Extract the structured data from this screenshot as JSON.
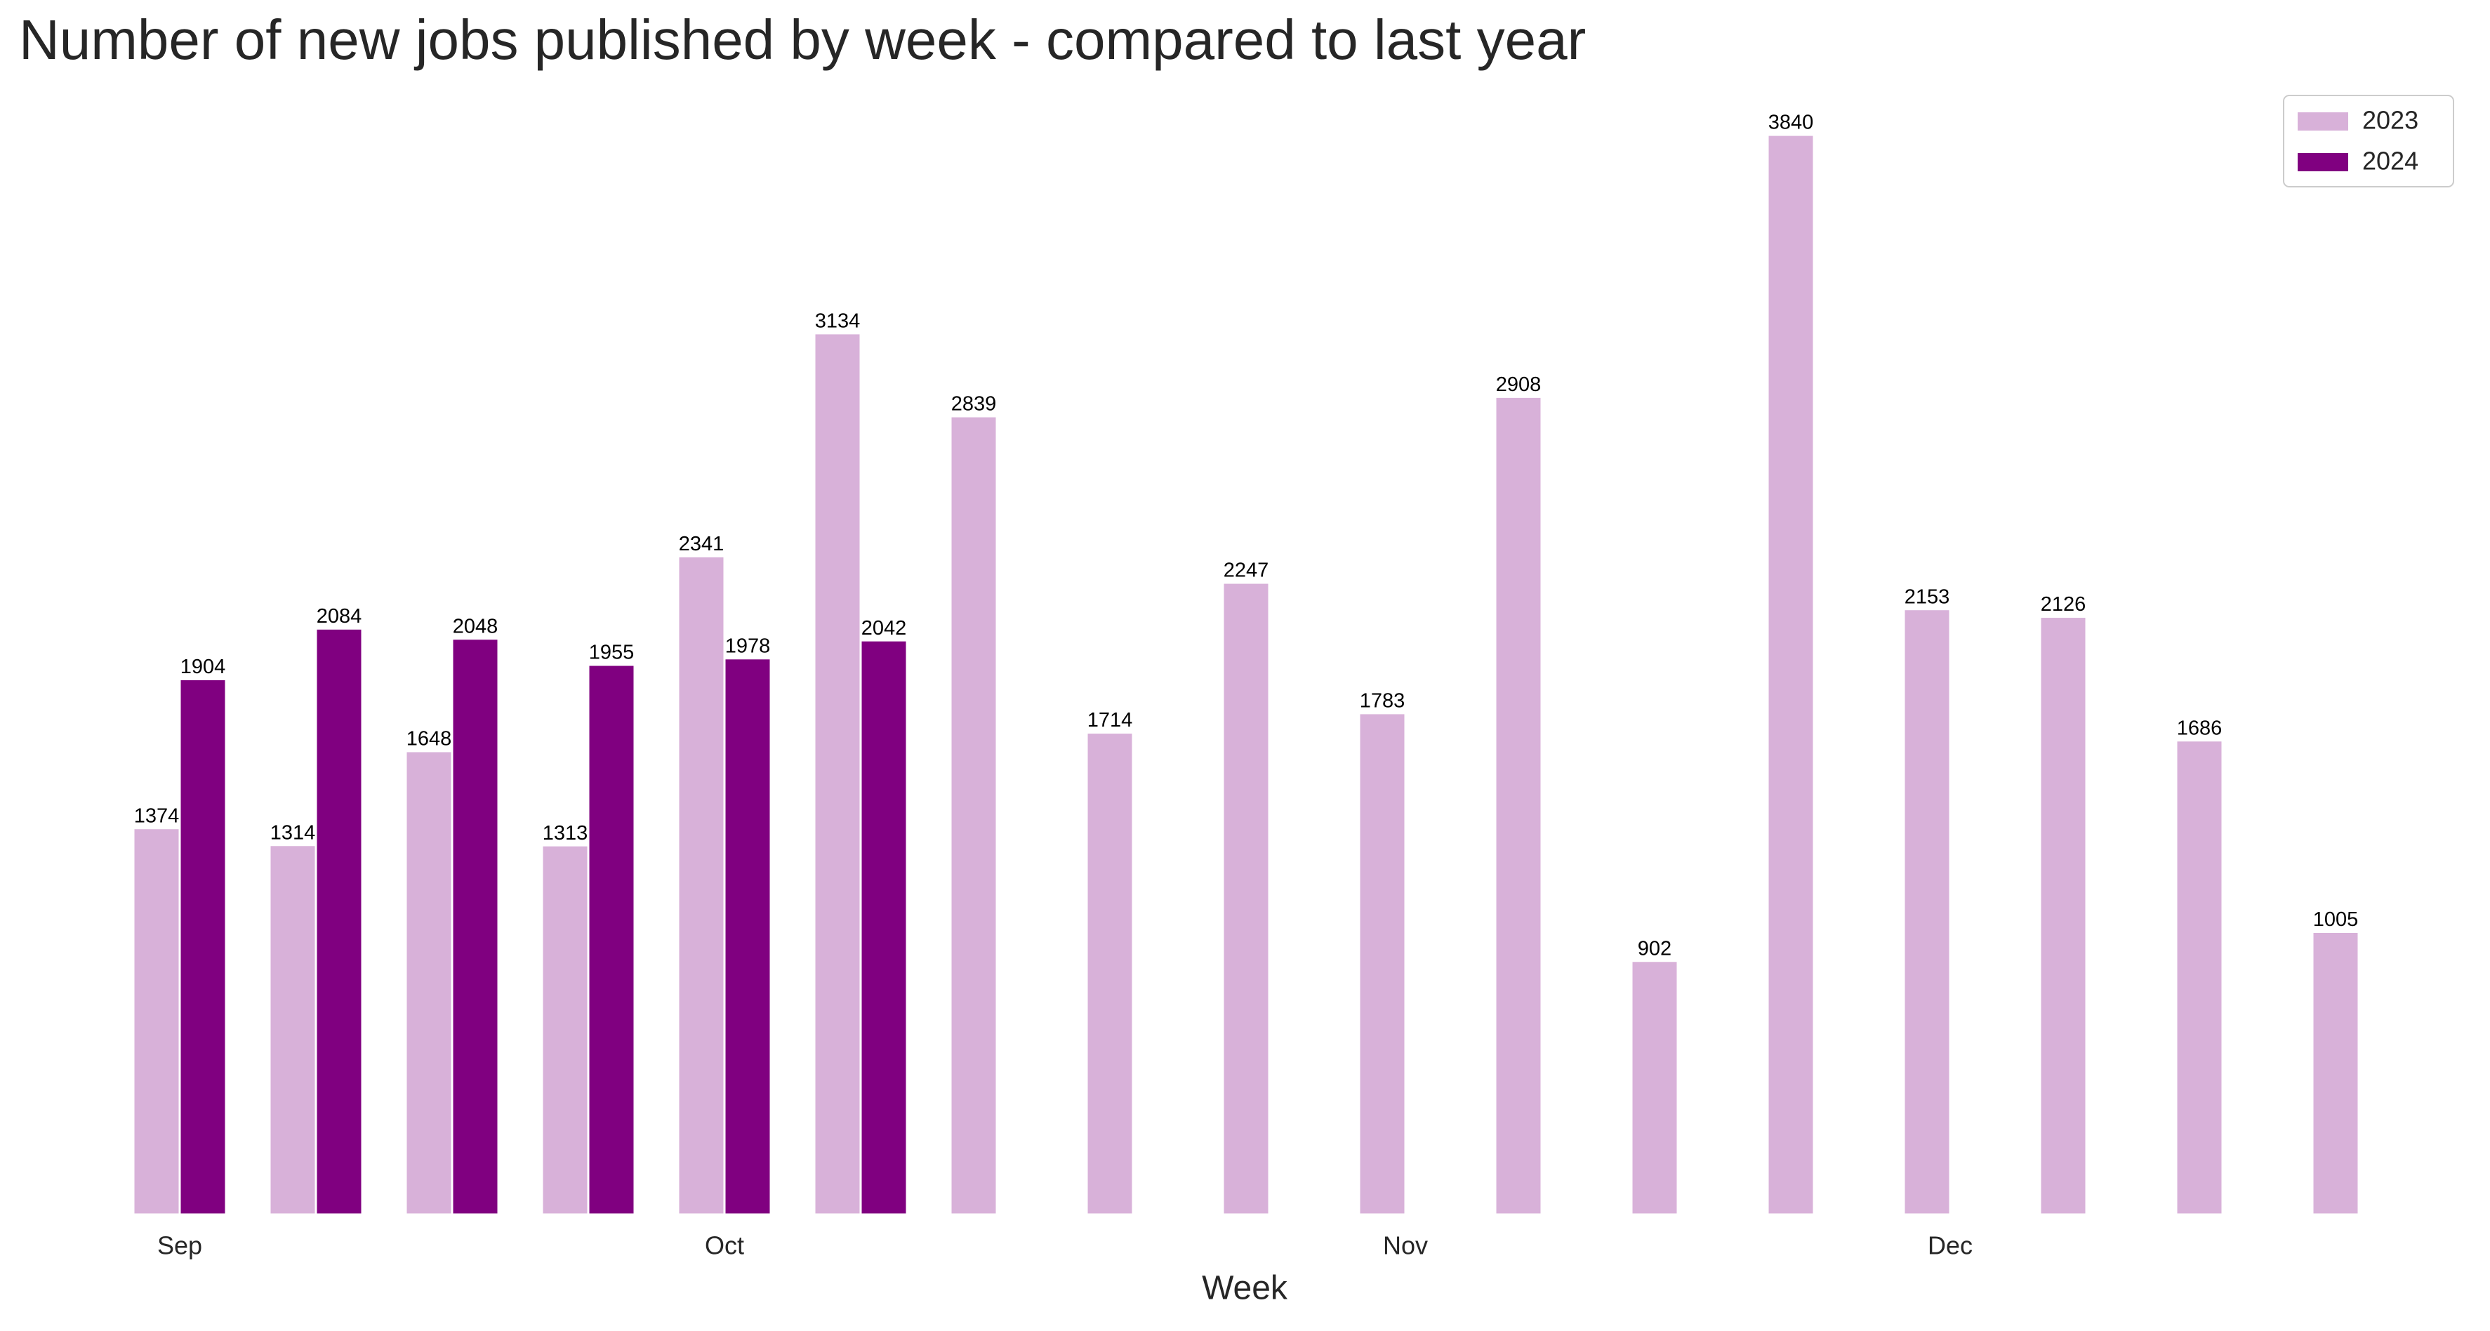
{
  "chart_data": {
    "type": "bar",
    "title": "Number of new jobs published by week - compared to last year",
    "x_label": "Week",
    "categories": [
      "Sep",
      null,
      null,
      null,
      "Oct",
      null,
      null,
      null,
      null,
      "Nov",
      null,
      null,
      null,
      "Dec",
      null,
      null,
      null
    ],
    "series": [
      {
        "name": "2023",
        "color": "#d8b1d9",
        "values": [
          1374,
          1314,
          1648,
          1313,
          2341,
          3134,
          2839,
          1714,
          2247,
          1783,
          2908,
          902,
          3840,
          2153,
          2126,
          1686,
          1005
        ]
      },
      {
        "name": "2024",
        "color": "#800080",
        "values": [
          1904,
          2084,
          2048,
          1955,
          1978,
          2042,
          null,
          null,
          null,
          null,
          null,
          null,
          null,
          null,
          null,
          null,
          null
        ]
      }
    ],
    "ylim": [
      0,
      4000
    ],
    "legend": "upper right",
    "data_labels": true
  }
}
